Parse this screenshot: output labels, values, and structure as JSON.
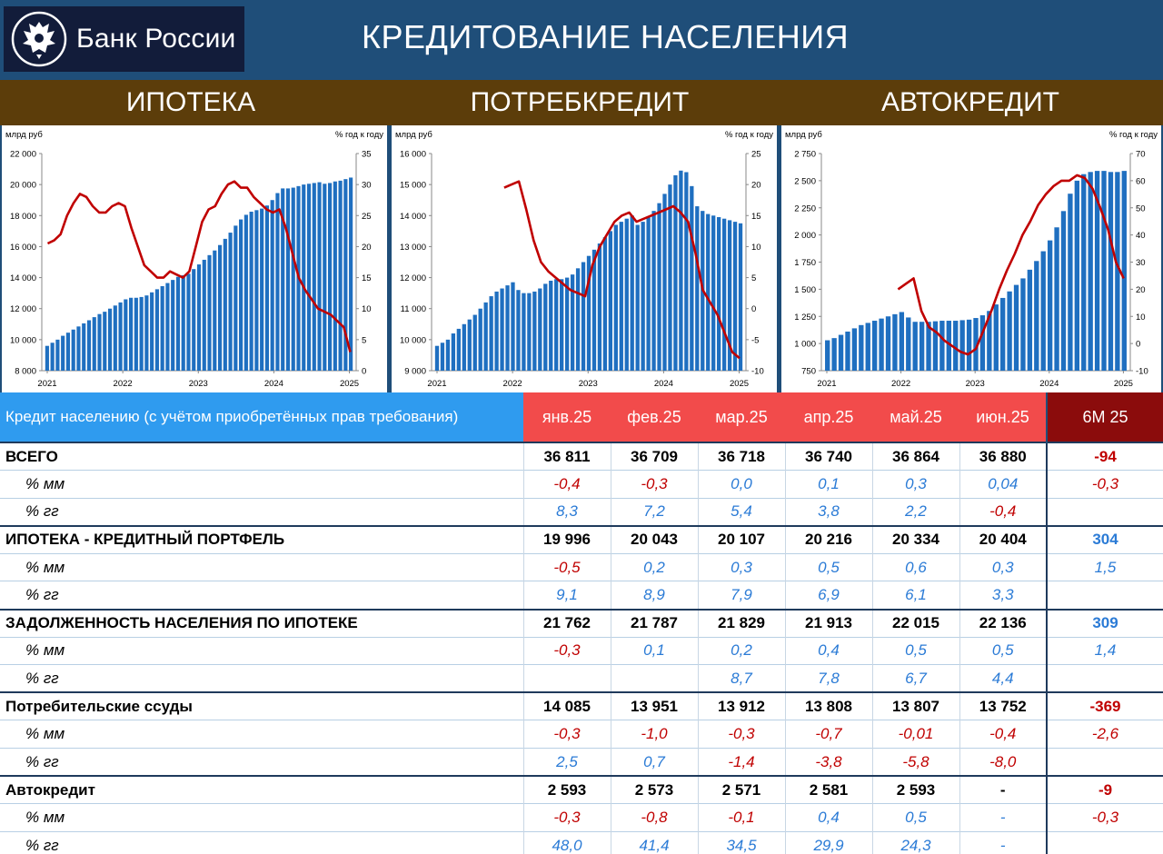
{
  "header": {
    "logo_text": "Банк России",
    "title": "КРЕДИТОВАНИЕ НАСЕЛЕНИЯ",
    "sections": [
      "ИПОТЕКА",
      "ПОТРЕБКРЕДИТ",
      "АВТОКРЕДИТ"
    ]
  },
  "colors": {
    "bars": "#1f6fc0",
    "line": "#c00000",
    "header_bg": "#1f4e79",
    "band_bg": "#5c3d0a"
  },
  "chart_data": [
    {
      "type": "bar",
      "title": "",
      "ylabel": "млрд руб",
      "y2label": "% год к году",
      "ylim": [
        8000,
        22000
      ],
      "yticks": [
        "8 000",
        "10 000",
        "12 000",
        "14 000",
        "16 000",
        "18 000",
        "20 000",
        "22 000"
      ],
      "y2lim": [
        0,
        35
      ],
      "y2ticks": [
        "0",
        "5",
        "10",
        "15",
        "20",
        "25",
        "30",
        "35"
      ],
      "xticks": [
        "2021",
        "2022",
        "2023",
        "2024",
        "2025"
      ],
      "grid": false,
      "series": [
        {
          "kind": "bar",
          "values": [
            9600,
            9800,
            10000,
            10250,
            10450,
            10650,
            10850,
            11050,
            11250,
            11450,
            11650,
            11800,
            12000,
            12200,
            12400,
            12600,
            12700,
            12700,
            12750,
            12850,
            13050,
            13250,
            13450,
            13650,
            13850,
            14050,
            14150,
            14250,
            14550,
            14850,
            15150,
            15450,
            15750,
            16100,
            16500,
            16900,
            17350,
            17750,
            18050,
            18250,
            18350,
            18450,
            18650,
            19000,
            19450,
            19750,
            19750,
            19800,
            19900,
            20000,
            20050,
            20100,
            20150,
            20050,
            20100,
            20200,
            20250,
            20350,
            20450
          ]
        },
        {
          "kind": "line",
          "values": [
            20.5,
            21,
            22,
            25,
            27,
            28.5,
            28,
            26.5,
            25.5,
            25.5,
            26.5,
            27,
            26.5,
            23,
            20,
            17,
            16,
            15,
            15,
            16,
            15.5,
            15,
            16,
            20,
            24,
            26,
            26.5,
            28.5,
            30,
            30.5,
            29.5,
            29.5,
            28,
            27,
            26,
            25.5,
            26,
            23,
            19,
            15,
            13,
            11.5,
            10,
            9.5,
            9,
            8,
            7,
            3
          ]
        }
      ]
    },
    {
      "type": "bar",
      "title": "",
      "ylabel": "млрд руб",
      "y2label": "% год к году",
      "ylim": [
        9000,
        16000
      ],
      "yticks": [
        "9 000",
        "10 000",
        "11 000",
        "12 000",
        "13 000",
        "14 000",
        "15 000",
        "16 000"
      ],
      "y2lim": [
        -10,
        25
      ],
      "y2ticks": [
        "-10",
        "-5",
        "0",
        "5",
        "10",
        "15",
        "20",
        "25"
      ],
      "xticks": [
        "2021",
        "2022",
        "2023",
        "2024",
        "2025"
      ],
      "grid": false,
      "series": [
        {
          "kind": "bar",
          "values": [
            9800,
            9900,
            10000,
            10200,
            10350,
            10500,
            10650,
            10800,
            11000,
            11200,
            11400,
            11550,
            11650,
            11750,
            11850,
            11600,
            11500,
            11500,
            11550,
            11650,
            11800,
            11900,
            11950,
            11950,
            12000,
            12100,
            12300,
            12500,
            12700,
            12900,
            13100,
            13300,
            13500,
            13700,
            13800,
            13900,
            14000,
            13700,
            13800,
            13950,
            14150,
            14400,
            14700,
            15000,
            15300,
            15450,
            15400,
            14950,
            14300,
            14150,
            14050,
            14000,
            13950,
            13900,
            13850,
            13800,
            13750
          ]
        },
        {
          "kind": "line",
          "values": [
            null,
            null,
            null,
            null,
            null,
            null,
            null,
            null,
            null,
            19.5,
            20,
            20.5,
            16,
            11,
            7.5,
            6,
            5,
            4,
            3,
            2.5,
            2,
            7,
            10,
            12,
            14,
            15,
            15.5,
            14,
            14.5,
            15,
            15.5,
            16,
            16.5,
            15.5,
            14,
            9,
            3,
            1,
            -1,
            -4,
            -7,
            -8
          ]
        }
      ]
    },
    {
      "type": "bar",
      "title": "",
      "ylabel": "млрд руб",
      "y2label": "% год к году",
      "ylim": [
        750,
        2750
      ],
      "yticks": [
        "750",
        "1 000",
        "1 250",
        "1 500",
        "1 750",
        "2 000",
        "2 250",
        "2 500",
        "2 750"
      ],
      "y2lim": [
        -10,
        70
      ],
      "y2ticks": [
        "-10",
        "0",
        "10",
        "20",
        "30",
        "40",
        "50",
        "60",
        "70"
      ],
      "xticks": [
        "2021",
        "2022",
        "2023",
        "2024",
        "2025"
      ],
      "grid": false,
      "series": [
        {
          "kind": "bar",
          "values": [
            1030,
            1050,
            1080,
            1110,
            1140,
            1170,
            1190,
            1210,
            1230,
            1250,
            1270,
            1290,
            1240,
            1200,
            1200,
            1200,
            1205,
            1210,
            1210,
            1210,
            1215,
            1220,
            1235,
            1260,
            1300,
            1360,
            1420,
            1480,
            1540,
            1600,
            1680,
            1760,
            1850,
            1950,
            2070,
            2220,
            2380,
            2500,
            2560,
            2580,
            2590,
            2590,
            2580,
            2580,
            2590
          ]
        },
        {
          "kind": "line",
          "values": [
            null,
            null,
            null,
            null,
            null,
            null,
            null,
            null,
            null,
            20,
            22,
            24,
            12,
            6,
            4,
            1,
            -1,
            -3,
            -4,
            -2,
            5,
            12,
            20,
            27,
            33,
            40,
            45,
            51,
            55,
            58,
            60,
            60,
            62,
            61,
            57,
            50,
            42,
            30,
            24
          ]
        }
      ]
    }
  ],
  "table": {
    "header_label": "Кредит населению (с учётом приобретённых прав требования)",
    "months": [
      "янв.25",
      "фев.25",
      "мар.25",
      "апр.25",
      "май.25",
      "июн.25"
    ],
    "total_label": "6М 25",
    "groups": [
      {
        "label": "ВСЕГО",
        "values": [
          "36 811",
          "36 709",
          "36 718",
          "36 740",
          "36 864",
          "36 880"
        ],
        "total": "-94",
        "total_sign": "neg",
        "mm": {
          "label": "% мм",
          "values": [
            "-0,4",
            "-0,3",
            "0,0",
            "0,1",
            "0,3",
            "0,04"
          ],
          "total": "-0,3"
        },
        "yy": {
          "label": "% гг",
          "values": [
            "8,3",
            "7,2",
            "5,4",
            "3,8",
            "2,2",
            "-0,4"
          ],
          "total": ""
        }
      },
      {
        "label": "ИПОТЕКА - КРЕДИТНЫЙ ПОРТФЕЛЬ",
        "values": [
          "19 996",
          "20 043",
          "20 107",
          "20 216",
          "20 334",
          "20 404"
        ],
        "total": "304",
        "total_sign": "pos",
        "mm": {
          "label": "% мм",
          "values": [
            "-0,5",
            "0,2",
            "0,3",
            "0,5",
            "0,6",
            "0,3"
          ],
          "total": "1,5"
        },
        "yy": {
          "label": "% гг",
          "values": [
            "9,1",
            "8,9",
            "7,9",
            "6,9",
            "6,1",
            "3,3"
          ],
          "total": ""
        }
      },
      {
        "label": "ЗАДОЛЖЕННОСТЬ НАСЕЛЕНИЯ ПО ИПОТЕКЕ",
        "values": [
          "21 762",
          "21 787",
          "21 829",
          "21 913",
          "22 015",
          "22 136"
        ],
        "total": "309",
        "total_sign": "pos",
        "mm": {
          "label": "% мм",
          "values": [
            "-0,3",
            "0,1",
            "0,2",
            "0,4",
            "0,5",
            "0,5"
          ],
          "total": "1,4"
        },
        "yy": {
          "label": "% гг",
          "values": [
            "",
            "",
            "8,7",
            "7,8",
            "6,7",
            "4,4"
          ],
          "total": ""
        }
      },
      {
        "label": "Потребительские ссуды",
        "values": [
          "14 085",
          "13 951",
          "13 912",
          "13 808",
          "13 807",
          "13 752"
        ],
        "total": "-369",
        "total_sign": "neg",
        "mm": {
          "label": "% мм",
          "values": [
            "-0,3",
            "-1,0",
            "-0,3",
            "-0,7",
            "-0,01",
            "-0,4"
          ],
          "total": "-2,6"
        },
        "yy": {
          "label": "% гг",
          "values": [
            "2,5",
            "0,7",
            "-1,4",
            "-3,8",
            "-5,8",
            "-8,0"
          ],
          "total": ""
        }
      },
      {
        "label": "Автокредит",
        "values": [
          "2 593",
          "2 573",
          "2 571",
          "2 581",
          "2 593",
          "-"
        ],
        "total": "-9",
        "total_sign": "neg",
        "mm": {
          "label": "% мм",
          "values": [
            "-0,3",
            "-0,8",
            "-0,1",
            "0,4",
            "0,5",
            "-"
          ],
          "total": "-0,3"
        },
        "yy": {
          "label": "% гг",
          "values": [
            "48,0",
            "41,4",
            "34,5",
            "29,9",
            "24,3",
            "-"
          ],
          "total": ""
        }
      }
    ]
  }
}
